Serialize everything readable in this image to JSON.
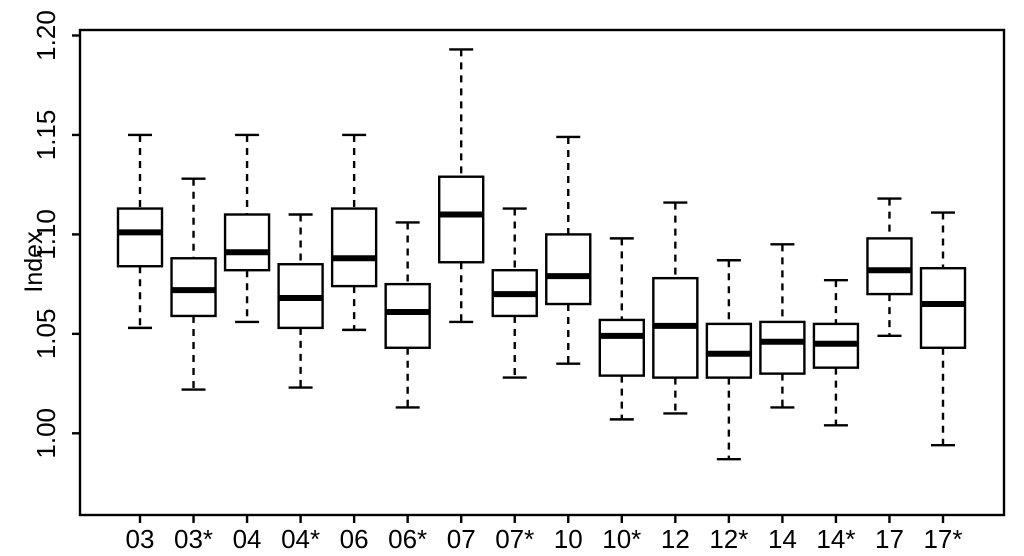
{
  "chart_data": {
    "type": "boxplot",
    "title": "",
    "xlabel": "",
    "ylabel": "Index",
    "grid": false,
    "legend": null,
    "background_color": "#ffffff",
    "stroke_color": "#000000",
    "ylim": [
      0.958,
      1.203
    ],
    "y_ticks": [
      1.0,
      1.05,
      1.1,
      1.15,
      1.2
    ],
    "y_tick_labels": [
      "1.00",
      "1.05",
      "1.10",
      "1.15",
      "1.20"
    ],
    "categories": [
      "03",
      "03*",
      "04",
      "04*",
      "06",
      "06*",
      "07",
      "07*",
      "10",
      "10*",
      "12",
      "12*",
      "14",
      "14*",
      "17",
      "17*"
    ],
    "boxes": [
      {
        "category": "03",
        "whisker_low": 1.053,
        "q1": 1.084,
        "median": 1.101,
        "q3": 1.113,
        "whisker_high": 1.15
      },
      {
        "category": "03*",
        "whisker_low": 1.022,
        "q1": 1.059,
        "median": 1.072,
        "q3": 1.088,
        "whisker_high": 1.128
      },
      {
        "category": "04",
        "whisker_low": 1.056,
        "q1": 1.082,
        "median": 1.091,
        "q3": 1.11,
        "whisker_high": 1.15
      },
      {
        "category": "04*",
        "whisker_low": 1.023,
        "q1": 1.053,
        "median": 1.068,
        "q3": 1.085,
        "whisker_high": 1.11
      },
      {
        "category": "06",
        "whisker_low": 1.052,
        "q1": 1.074,
        "median": 1.088,
        "q3": 1.113,
        "whisker_high": 1.15
      },
      {
        "category": "06*",
        "whisker_low": 1.013,
        "q1": 1.043,
        "median": 1.061,
        "q3": 1.075,
        "whisker_high": 1.106
      },
      {
        "category": "07",
        "whisker_low": 1.056,
        "q1": 1.086,
        "median": 1.11,
        "q3": 1.129,
        "whisker_high": 1.193
      },
      {
        "category": "07*",
        "whisker_low": 1.028,
        "q1": 1.059,
        "median": 1.07,
        "q3": 1.082,
        "whisker_high": 1.113
      },
      {
        "category": "10",
        "whisker_low": 1.035,
        "q1": 1.065,
        "median": 1.079,
        "q3": 1.1,
        "whisker_high": 1.149
      },
      {
        "category": "10*",
        "whisker_low": 1.007,
        "q1": 1.029,
        "median": 1.049,
        "q3": 1.057,
        "whisker_high": 1.098
      },
      {
        "category": "12",
        "whisker_low": 1.01,
        "q1": 1.028,
        "median": 1.054,
        "q3": 1.078,
        "whisker_high": 1.116
      },
      {
        "category": "12*",
        "whisker_low": 0.987,
        "q1": 1.028,
        "median": 1.04,
        "q3": 1.055,
        "whisker_high": 1.087
      },
      {
        "category": "14",
        "whisker_low": 1.013,
        "q1": 1.03,
        "median": 1.046,
        "q3": 1.056,
        "whisker_high": 1.095
      },
      {
        "category": "14*",
        "whisker_low": 1.004,
        "q1": 1.033,
        "median": 1.045,
        "q3": 1.055,
        "whisker_high": 1.077
      },
      {
        "category": "17",
        "whisker_low": 1.049,
        "q1": 1.07,
        "median": 1.082,
        "q3": 1.098,
        "whisker_high": 1.118
      },
      {
        "category": "17*",
        "whisker_low": 0.994,
        "q1": 1.043,
        "median": 1.065,
        "q3": 1.083,
        "whisker_high": 1.111
      }
    ]
  }
}
